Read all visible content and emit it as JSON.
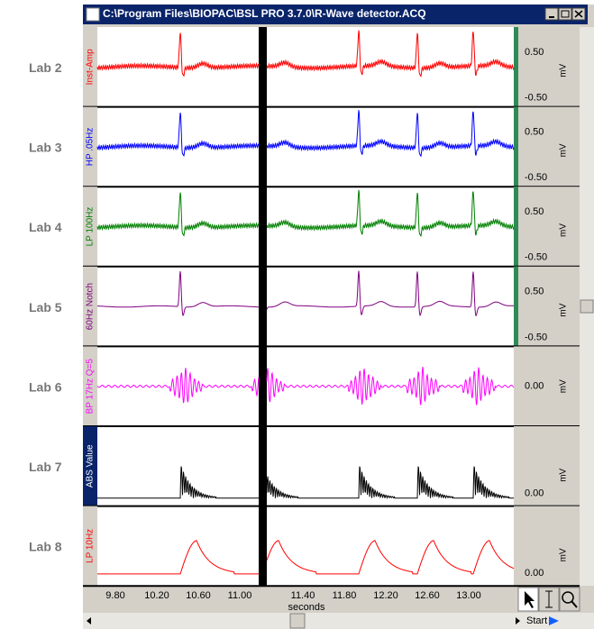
{
  "window": {
    "title": "C:\\Program Files\\BIOPAC\\BSL PRO 3.7.0\\R-Wave detector.ACQ"
  },
  "side_labels": [
    "Lab 2",
    "Lab 3",
    "Lab 4",
    "Lab 5",
    "Lab 6",
    "Lab 7",
    "Lab 8"
  ],
  "channels": [
    {
      "name": "Inst-Amp",
      "color": "#ff0000",
      "scale": [
        "0.50",
        "-0.50"
      ],
      "unit": "mV",
      "shape": "ecg"
    },
    {
      "name": "HP .05Hz",
      "color": "#0000ff",
      "scale": [
        "0.50",
        "-0.50"
      ],
      "unit": "mV",
      "shape": "ecg"
    },
    {
      "name": "LP 100Hz",
      "color": "#008000",
      "scale": [
        "0.50",
        "-0.50"
      ],
      "unit": "mV",
      "shape": "ecg"
    },
    {
      "name": "60Hz Notch",
      "color": "#800080",
      "scale": [
        "0.50",
        "-0.50"
      ],
      "unit": "mV",
      "shape": "clean"
    },
    {
      "name": "BP 17Hz Q=5",
      "color": "#ff00ff",
      "scale": [
        "0.00"
      ],
      "unit": "mV",
      "shape": "band"
    },
    {
      "name": "ABS Value",
      "color": "#000000",
      "scale": [
        "0.00"
      ],
      "unit": "mV",
      "shape": "abs"
    },
    {
      "name": "LP 10Hz",
      "color": "#ff0000",
      "scale": [
        "0.00"
      ],
      "unit": "mV",
      "shape": "smooth"
    }
  ],
  "time_axis": {
    "ticks": [
      "9.80",
      "10.20",
      "10.60",
      "11.00",
      "11.40",
      "11.80",
      "12.20",
      "12.60",
      "13.00"
    ],
    "label": "seconds"
  },
  "toolbar": {
    "start": "Start"
  }
}
